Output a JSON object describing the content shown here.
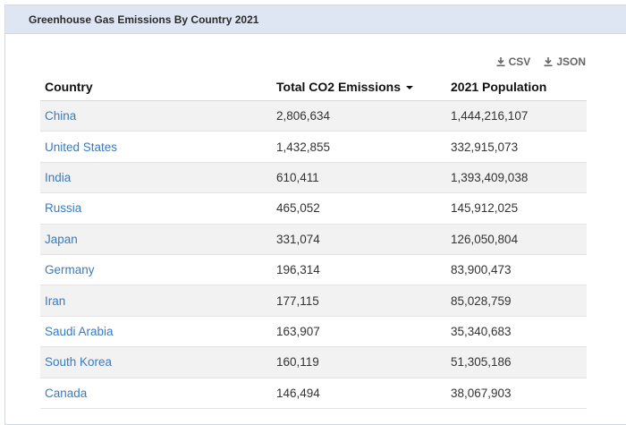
{
  "panel": {
    "title": "Greenhouse Gas Emissions By Country 2021"
  },
  "downloads": {
    "csv_label": "CSV",
    "json_label": "JSON"
  },
  "table": {
    "headers": {
      "country": "Country",
      "emissions": "Total CO2 Emissions",
      "population": "2021 Population"
    },
    "rows": [
      {
        "country": "China",
        "emissions": "2,806,634",
        "population": "1,444,216,107"
      },
      {
        "country": "United States",
        "emissions": "1,432,855",
        "population": "332,915,073"
      },
      {
        "country": "India",
        "emissions": "610,411",
        "population": "1,393,409,038"
      },
      {
        "country": "Russia",
        "emissions": "465,052",
        "population": "145,912,025"
      },
      {
        "country": "Japan",
        "emissions": "331,074",
        "population": "126,050,804"
      },
      {
        "country": "Germany",
        "emissions": "196,314",
        "population": "83,900,473"
      },
      {
        "country": "Iran",
        "emissions": "177,115",
        "population": "85,028,759"
      },
      {
        "country": "Saudi Arabia",
        "emissions": "163,907",
        "population": "35,340,683"
      },
      {
        "country": "South Korea",
        "emissions": "160,119",
        "population": "51,305,186"
      },
      {
        "country": "Canada",
        "emissions": "146,494",
        "population": "38,067,903"
      }
    ]
  },
  "colors": {
    "link": "#3a7bbf",
    "header_bg": "#dde6f2",
    "stripe": "#f2f2f2"
  },
  "icons": {
    "download": "download-icon",
    "sort": "sort-desc-icon"
  }
}
